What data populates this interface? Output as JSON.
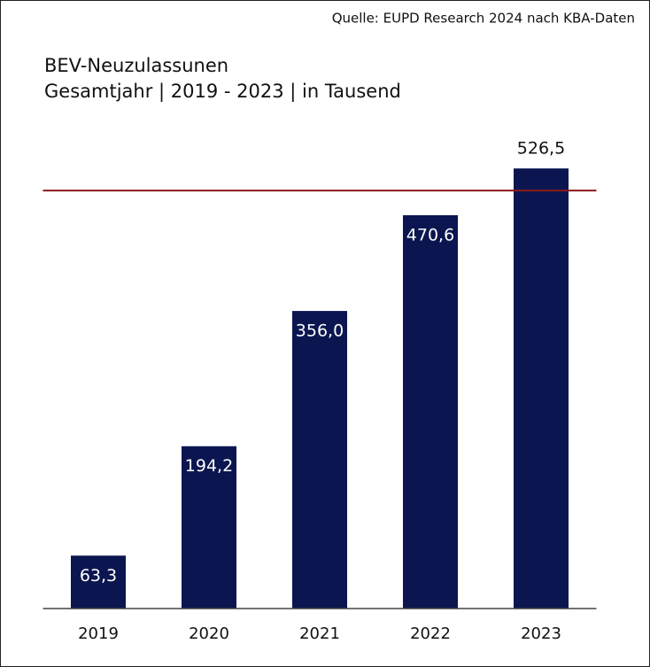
{
  "chart_data": {
    "type": "bar",
    "source": "Quelle: EUPD Research 2024 nach KBA-Daten",
    "title": "BEV-Neuzulassunen",
    "subtitle": "Gesamtjahr | 2019 - 2023 | in Tausend",
    "categories": [
      "2019",
      "2020",
      "2021",
      "2022",
      "2023"
    ],
    "values": [
      63.3,
      194.2,
      356.0,
      470.6,
      526.5
    ],
    "value_labels": [
      "63,3",
      "194,2",
      "356,0",
      "470,6",
      "526,5"
    ],
    "color": "#0b1650",
    "ylim": [
      0,
      550
    ],
    "reference_line": {
      "value": 500,
      "color": "#8b1a1a"
    }
  }
}
